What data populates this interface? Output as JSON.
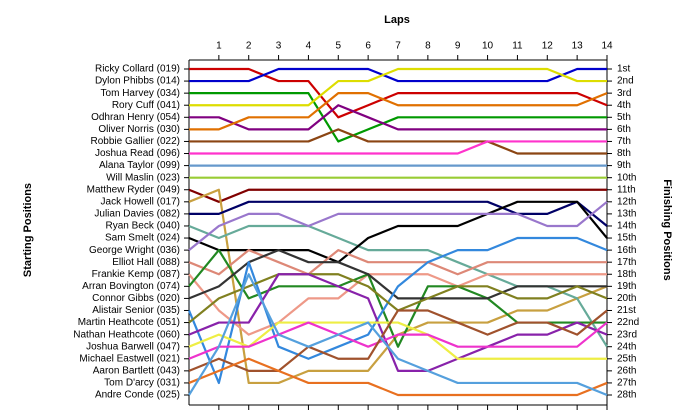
{
  "chart_data": {
    "type": "lap",
    "title": "Laps",
    "y_label": "Starting Positions",
    "y2_label": "Finishing Positions",
    "x": [
      0,
      1,
      2,
      3,
      4,
      5,
      6,
      7,
      8,
      9,
      10,
      11,
      12,
      13,
      14
    ],
    "xlim": [
      0,
      14
    ],
    "xticks": [
      1,
      2,
      3,
      4,
      5,
      6,
      7,
      8,
      9,
      10,
      11,
      12,
      13,
      14
    ],
    "ylim": [
      1,
      28
    ],
    "y_inverted": true,
    "yticks": [
      {
        "value": 1,
        "label": "1st"
      },
      {
        "value": 2,
        "label": "2nd"
      },
      {
        "value": 3,
        "label": "3rd"
      },
      {
        "value": 4,
        "label": "4th"
      },
      {
        "value": 5,
        "label": "5th"
      },
      {
        "value": 6,
        "label": "6th"
      },
      {
        "value": 7,
        "label": "7th"
      },
      {
        "value": 8,
        "label": "8th"
      },
      {
        "value": 9,
        "label": "9th"
      },
      {
        "value": 10,
        "label": "10th"
      },
      {
        "value": 11,
        "label": "11th"
      },
      {
        "value": 12,
        "label": "12th"
      },
      {
        "value": 13,
        "label": "13th"
      },
      {
        "value": 14,
        "label": "14th"
      },
      {
        "value": 15,
        "label": "15th"
      },
      {
        "value": 16,
        "label": "16th"
      },
      {
        "value": 17,
        "label": "17th"
      },
      {
        "value": 18,
        "label": "18th"
      },
      {
        "value": 19,
        "label": "19th"
      },
      {
        "value": 20,
        "label": "20th"
      },
      {
        "value": 21,
        "label": "21st"
      },
      {
        "value": 22,
        "label": "22nd"
      },
      {
        "value": 23,
        "label": "23rd"
      },
      {
        "value": 24,
        "label": "24th"
      },
      {
        "value": 25,
        "label": "25th"
      },
      {
        "value": 26,
        "label": "26th"
      },
      {
        "value": 27,
        "label": "27th"
      },
      {
        "value": 28,
        "label": "28th"
      }
    ],
    "series": [
      {
        "name": "Ricky Collard (019)",
        "color": "#cc0000",
        "values": [
          1,
          1,
          1,
          2,
          2,
          5,
          4,
          3,
          3,
          3,
          3,
          3,
          3,
          3,
          4
        ]
      },
      {
        "name": "Dylon Phibbs (014)",
        "color": "#0000cc",
        "values": [
          2,
          2,
          2,
          1,
          1,
          1,
          1,
          2,
          2,
          2,
          2,
          2,
          2,
          1,
          1
        ]
      },
      {
        "name": "Tom Harvey (034)",
        "color": "#009900",
        "values": [
          3,
          3,
          3,
          3,
          3,
          7,
          6,
          5,
          5,
          5,
          5,
          5,
          5,
          5,
          5
        ]
      },
      {
        "name": "Rory Cuff (041)",
        "color": "#dddd00",
        "values": [
          4,
          4,
          4,
          4,
          4,
          2,
          2,
          1,
          1,
          1,
          1,
          1,
          1,
          2,
          2
        ]
      },
      {
        "name": "Odhran Henry (054)",
        "color": "#800080",
        "values": [
          5,
          5,
          6,
          6,
          6,
          4,
          5,
          6,
          6,
          6,
          6,
          6,
          6,
          6,
          6
        ]
      },
      {
        "name": "Oliver Norris (030)",
        "color": "#e07000",
        "values": [
          6,
          6,
          5,
          5,
          5,
          3,
          3,
          4,
          4,
          4,
          4,
          4,
          4,
          4,
          3
        ]
      },
      {
        "name": "Robbie Gallier (022)",
        "color": "#8b4513",
        "values": [
          7,
          7,
          7,
          7,
          7,
          6,
          7,
          7,
          7,
          7,
          7,
          8,
          8,
          8,
          8
        ]
      },
      {
        "name": "Joshua Read (096)",
        "color": "#ff33cc",
        "values": [
          8,
          8,
          8,
          8,
          8,
          8,
          8,
          8,
          8,
          8,
          7,
          7,
          7,
          7,
          7
        ]
      },
      {
        "name": "Alana Taylor (099)",
        "color": "#6699cc",
        "values": [
          9,
          9,
          9,
          9,
          9,
          9,
          9,
          9,
          9,
          9,
          9,
          9,
          9,
          9,
          9
        ]
      },
      {
        "name": "Will Maslin (023)",
        "color": "#99cc33",
        "values": [
          10,
          10,
          10,
          10,
          10,
          10,
          10,
          10,
          10,
          10,
          10,
          10,
          10,
          10,
          10
        ]
      },
      {
        "name": "Matthew Ryder (049)",
        "color": "#800000",
        "values": [
          11,
          12,
          11,
          11,
          11,
          11,
          11,
          11,
          11,
          11,
          11,
          11,
          11,
          11,
          11
        ]
      },
      {
        "name": "Jack Howell (017)",
        "color": "#c8a040",
        "values": [
          12,
          11,
          27,
          27,
          26,
          26,
          26,
          23,
          22,
          22,
          22,
          21,
          21,
          20,
          19
        ]
      },
      {
        "name": "Julian Davies (082)",
        "color": "#000066",
        "values": [
          13,
          13,
          12,
          12,
          12,
          12,
          12,
          12,
          12,
          12,
          12,
          13,
          13,
          12,
          14
        ]
      },
      {
        "name": "Ryan Beck (040)",
        "color": "#66aa99",
        "values": [
          14,
          15,
          14,
          14,
          14,
          15,
          16,
          16,
          16,
          17,
          18,
          19,
          19,
          20,
          24
        ]
      },
      {
        "name": "Sam Smelt (024)",
        "color": "#000000",
        "values": [
          15,
          16,
          16,
          16,
          16,
          17,
          15,
          14,
          14,
          14,
          13,
          12,
          12,
          12,
          15
        ]
      },
      {
        "name": "George Wright (036)",
        "color": "#9977cc",
        "values": [
          16,
          14,
          13,
          13,
          14,
          13,
          13,
          13,
          13,
          13,
          13,
          13,
          14,
          14,
          12
        ]
      },
      {
        "name": "Elliot Hall (088)",
        "color": "#dd8877",
        "values": [
          17,
          18,
          16,
          17,
          18,
          16,
          17,
          17,
          17,
          18,
          17,
          17,
          17,
          17,
          17
        ]
      },
      {
        "name": "Frankie Kemp (087)",
        "color": "#ee9988",
        "values": [
          18,
          21,
          23,
          22,
          20,
          20,
          18,
          18,
          18,
          19,
          18,
          18,
          18,
          18,
          18
        ]
      },
      {
        "name": "Arran Bovington (074)",
        "color": "#228822",
        "values": [
          19,
          16,
          20,
          19,
          19,
          19,
          18,
          24,
          19,
          19,
          20,
          22,
          22,
          22,
          22
        ]
      },
      {
        "name": "Connor Gibbs (020)",
        "color": "#333333",
        "values": [
          20,
          19,
          17,
          16,
          17,
          17,
          18,
          20,
          20,
          20,
          20,
          19,
          19,
          19,
          19
        ]
      },
      {
        "name": "Alistair Senior (035)",
        "color": "#3388dd",
        "values": [
          21,
          27,
          17,
          24,
          25,
          24,
          23,
          19,
          17,
          16,
          16,
          15,
          15,
          15,
          16
        ]
      },
      {
        "name": "Martin Heathcote (051)",
        "color": "#808020",
        "values": [
          22,
          20,
          19,
          18,
          18,
          18,
          19,
          21,
          20,
          19,
          19,
          20,
          20,
          19,
          20
        ]
      },
      {
        "name": "Nathan Heathcote (060)",
        "color": "#8822aa",
        "values": [
          23,
          22,
          22,
          18,
          18,
          19,
          20,
          26,
          26,
          25,
          24,
          23,
          23,
          22,
          23
        ]
      },
      {
        "name": "Joshua Barwell (047)",
        "color": "#eeee44",
        "values": [
          24,
          23,
          24,
          22,
          22,
          22,
          22,
          22,
          23,
          25,
          25,
          25,
          25,
          25,
          25
        ]
      },
      {
        "name": "Michael Eastwell (021)",
        "color": "#ee33cc",
        "values": [
          25,
          24,
          24,
          23,
          22,
          23,
          24,
          23,
          23,
          24,
          24,
          24,
          24,
          24,
          22
        ]
      },
      {
        "name": "Aaron Bartlett (043)",
        "color": "#a0522d",
        "values": [
          26,
          25,
          26,
          26,
          24,
          25,
          25,
          21,
          21,
          22,
          23,
          22,
          22,
          23,
          21
        ]
      },
      {
        "name": "Tom D'arcy (031)",
        "color": "#e87020",
        "values": [
          27,
          26,
          25,
          26,
          27,
          27,
          27,
          28,
          28,
          28,
          28,
          28,
          28,
          28,
          27
        ]
      },
      {
        "name": "Andre Conde (025)",
        "color": "#55a0dd",
        "values": [
          28,
          24,
          18,
          23,
          24,
          23,
          22,
          25,
          26,
          27,
          27,
          27,
          27,
          27,
          28
        ]
      }
    ]
  }
}
